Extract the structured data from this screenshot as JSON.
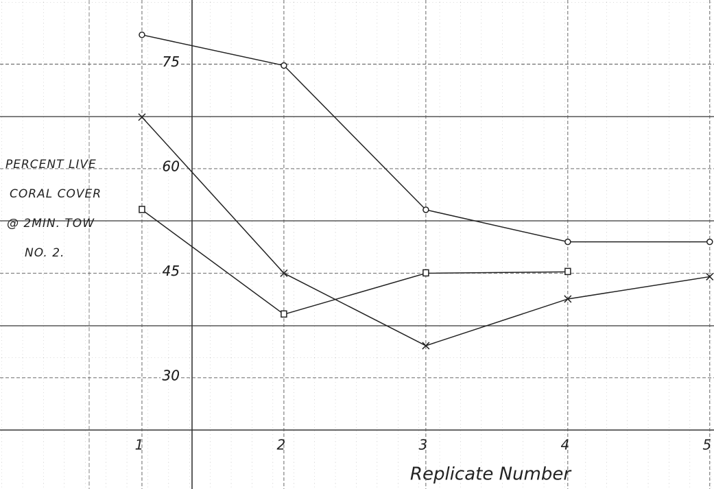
{
  "chart_data": {
    "type": "line",
    "ylabel": [
      "PERCENT LIVE",
      "CORAL COVER",
      "@ 2MIN. TOW",
      "NO. 2."
    ],
    "xlabel": "Replicate Number",
    "x": [
      1,
      2,
      3,
      4,
      5
    ],
    "xlim": [
      0,
      5.03
    ],
    "xticks": [
      1,
      2,
      3,
      4,
      5
    ],
    "ylim": [
      22.5,
      84.2
    ],
    "yticks": [
      30,
      45,
      60,
      75
    ],
    "grid": true,
    "series": [
      {
        "color": "#222222",
        "marker": "circle",
        "values": [
          79.2,
          74.8,
          54.1,
          49.5,
          49.5
        ]
      },
      {
        "color": "#222222",
        "marker": "x",
        "values": [
          67.4,
          45,
          34.6,
          41.3,
          44.5
        ]
      },
      {
        "color": "#222222",
        "marker": "square",
        "values": [
          54.1,
          39.1,
          45,
          45.2,
          null
        ]
      }
    ]
  }
}
